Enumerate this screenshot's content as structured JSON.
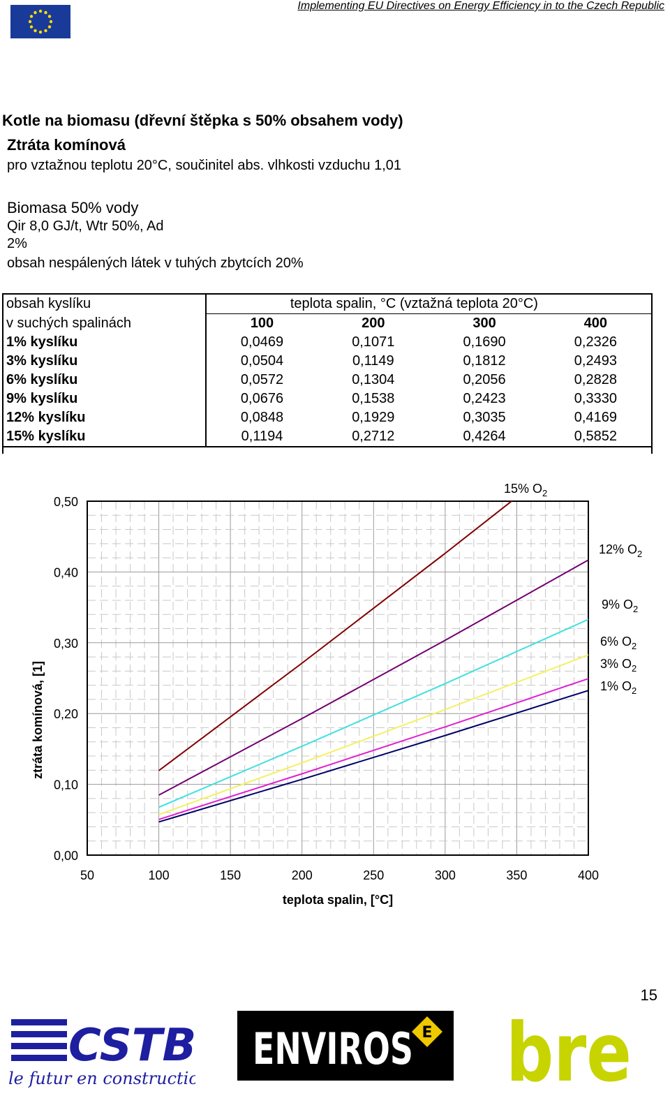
{
  "header": {
    "running_title": "Implementing EU Directives on Energy Efficiency in to the Czech Republic",
    "eu_flag_icon": "eu-flag-icon"
  },
  "heading": {
    "title": "Kotle na biomasu (dřevní štěpka s 50% obsahem vody)",
    "subtitle": "Ztráta komínová",
    "note": "pro vztažnou teplotu 20°C, součinitel abs. vlhkosti vzduchu 1,01"
  },
  "fuel": {
    "name": "Biomasa 50% vody",
    "line1": "Qir 8,0 GJ/t, Wtr 50%, Ad",
    "line2": "2%",
    "line3": "obsah nespálených látek v tuhých zbytcích 20%"
  },
  "table": {
    "row_header_1": "obsah kyslíku",
    "row_header_2": "v suchých spalinách",
    "col_group_header": "teplota spalin, °C  (vztažná teplota 20°C)",
    "columns": [
      "100",
      "200",
      "300",
      "400"
    ],
    "rows": [
      {
        "label": "1% kyslíku",
        "values": [
          "0,0469",
          "0,1071",
          "0,1690",
          "0,2326"
        ]
      },
      {
        "label": "3% kyslíku",
        "values": [
          "0,0504",
          "0,1149",
          "0,1812",
          "0,2493"
        ]
      },
      {
        "label": "6% kyslíku",
        "values": [
          "0,0572",
          "0,1304",
          "0,2056",
          "0,2828"
        ]
      },
      {
        "label": "9% kyslíku",
        "values": [
          "0,0676",
          "0,1538",
          "0,2423",
          "0,3330"
        ]
      },
      {
        "label": "12% kyslíku",
        "values": [
          "0,0848",
          "0,1929",
          "0,3035",
          "0,4169"
        ]
      },
      {
        "label": "15% kyslíku",
        "values": [
          "0,1194",
          "0,2712",
          "0,4264",
          "0,5852"
        ]
      }
    ]
  },
  "chart_data": {
    "type": "line",
    "xlabel": "teplota spalin, [°C]",
    "ylabel": "ztráta komínová, [1]",
    "xlim": [
      50,
      400
    ],
    "ylim": [
      0,
      0.5
    ],
    "xticks": [
      "50",
      "100",
      "150",
      "200",
      "250",
      "300",
      "350",
      "400"
    ],
    "yticks": [
      "0,00",
      "0,10",
      "0,20",
      "0,30",
      "0,40",
      "0,50"
    ],
    "grid": true,
    "x": [
      100,
      200,
      300,
      400
    ],
    "series": [
      {
        "label_main": "1% O",
        "label_sub": "2",
        "color": "#000066",
        "values": [
          0.0469,
          0.1071,
          0.169,
          0.2326
        ]
      },
      {
        "label_main": "3% O",
        "label_sub": "2",
        "color": "#e020d0",
        "values": [
          0.0504,
          0.1149,
          0.1812,
          0.2493
        ]
      },
      {
        "label_main": "6% O",
        "label_sub": "2",
        "color": "#f5f060",
        "values": [
          0.0572,
          0.1304,
          0.2056,
          0.2828
        ]
      },
      {
        "label_main": "9% O",
        "label_sub": "2",
        "color": "#40e0e0",
        "values": [
          0.0676,
          0.1538,
          0.2423,
          0.333
        ]
      },
      {
        "label_main": "12% O",
        "label_sub": "2",
        "color": "#700070",
        "values": [
          0.0848,
          0.1929,
          0.3035,
          0.4169
        ]
      },
      {
        "label_main": "15% O",
        "label_sub": "2",
        "color": "#800000",
        "values": [
          0.1194,
          0.2712,
          0.4264,
          0.5852
        ]
      }
    ]
  },
  "footer": {
    "page_number": "15",
    "logos": {
      "cstb_text": "CSTB",
      "cstb_tagline": "le futur en construction",
      "enviros_text": "ENVIROS",
      "enviros_badge": "E",
      "bre_text": "bre"
    }
  }
}
